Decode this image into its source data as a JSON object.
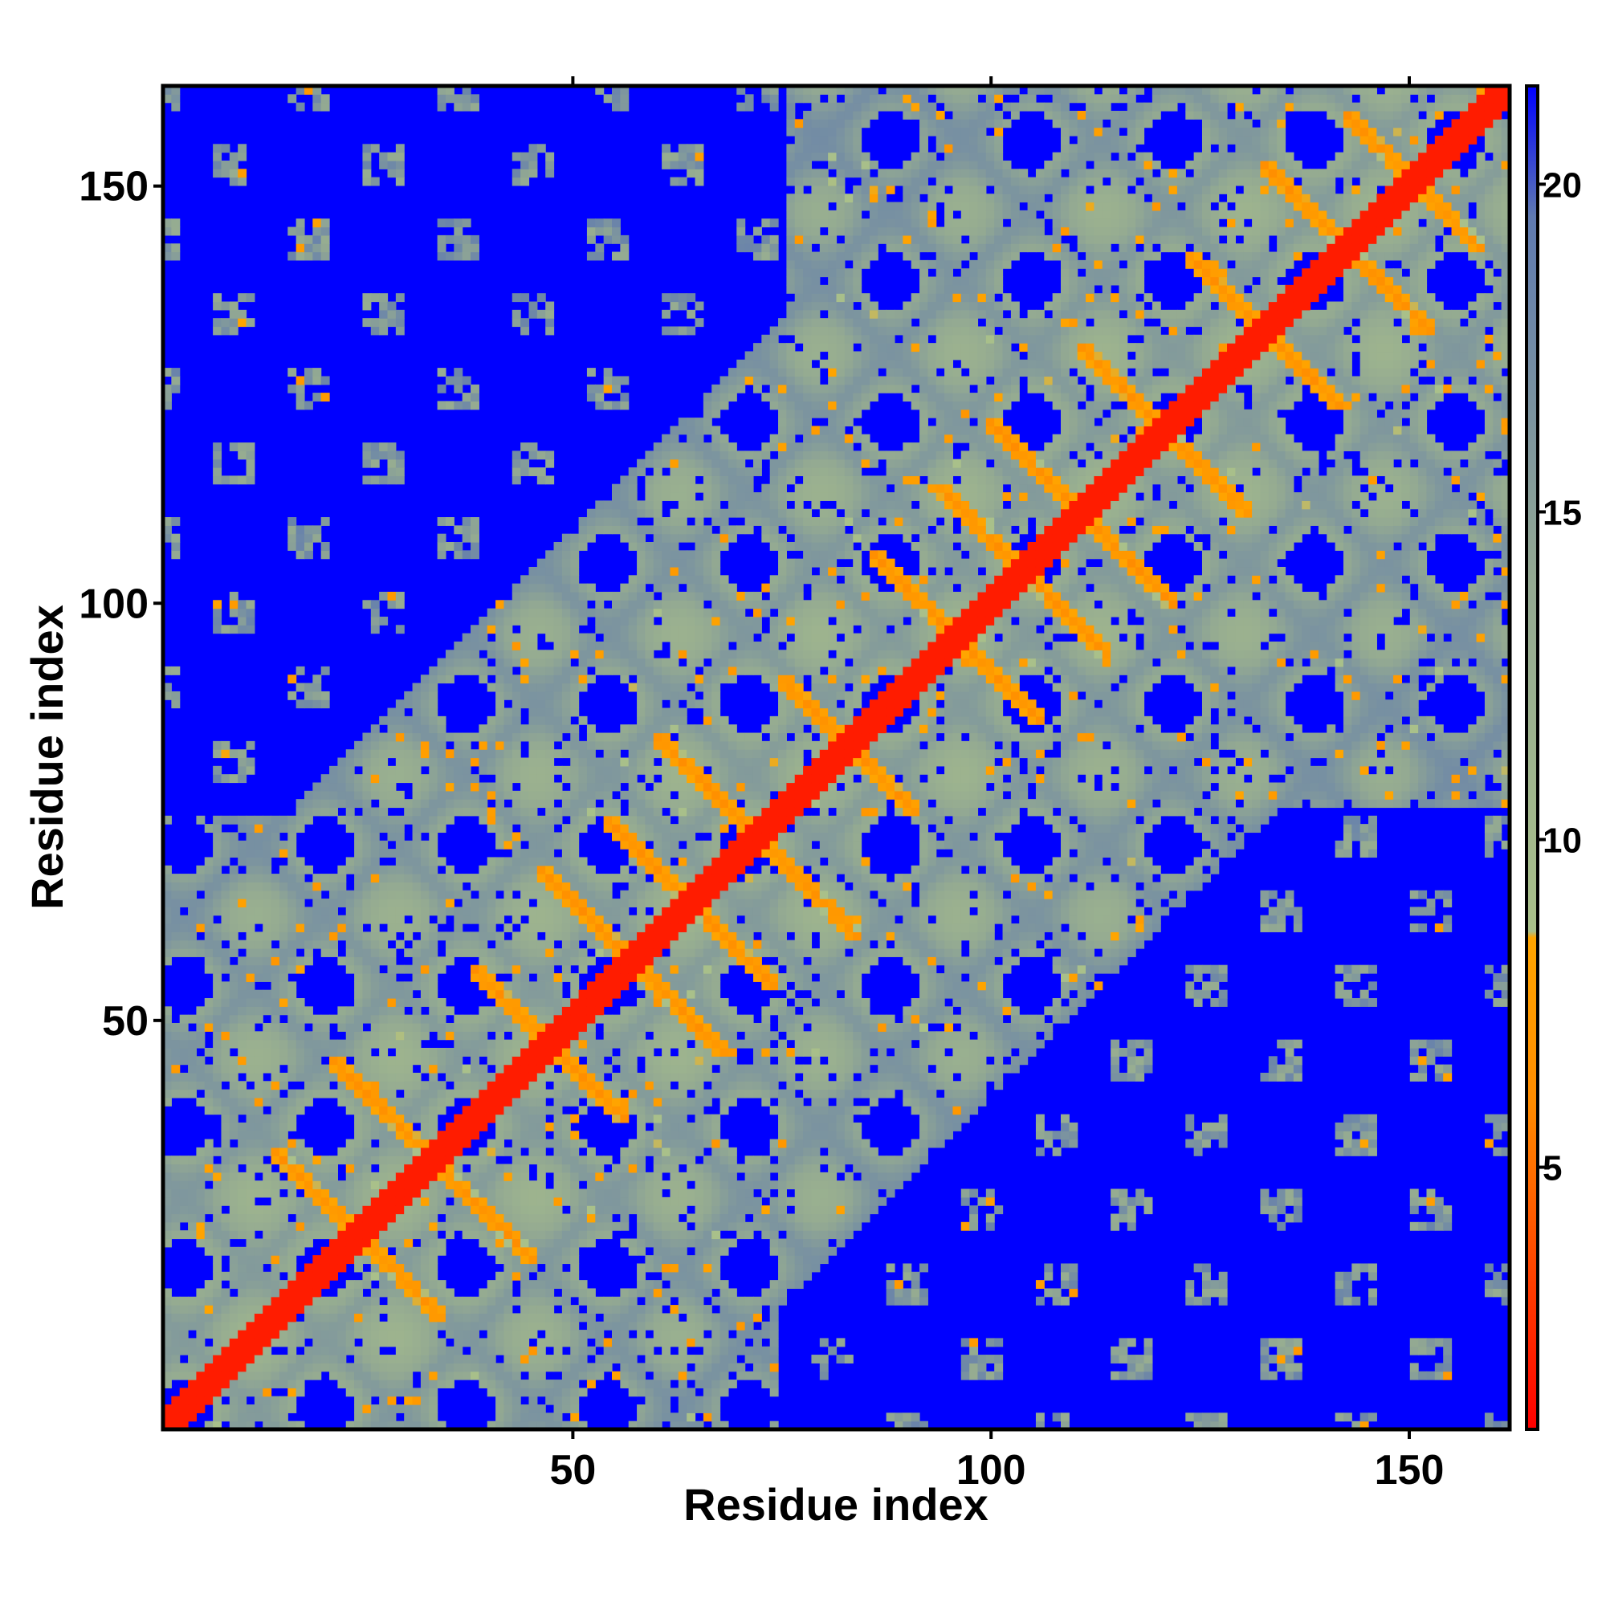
{
  "chart_data": {
    "type": "heatmap",
    "title": "",
    "xlabel": "Residue index",
    "ylabel": "Residue index",
    "n_residues": 162,
    "xlim": [
      1,
      162
    ],
    "ylim": [
      1,
      162
    ],
    "x_ticks": [
      50,
      100,
      150
    ],
    "y_ticks": [
      50,
      100,
      150
    ],
    "colorbar": {
      "ticks": [
        5,
        10,
        15,
        20
      ],
      "range": [
        1,
        21.5
      ],
      "stops": [
        {
          "value": 1,
          "color": "#ff0000"
        },
        {
          "value": 6,
          "color": "#ff8c00"
        },
        {
          "value": 8.5,
          "color": "#ffa500"
        },
        {
          "value": 8.6,
          "color": "#a9c08a"
        },
        {
          "value": 14,
          "color": "#93a992"
        },
        {
          "value": 19.5,
          "color": "#5f7ab0"
        },
        {
          "value": 21.5,
          "color": "#0000ff"
        }
      ]
    },
    "colors": {
      "background": "#0000ff",
      "diagonal": "#ff0000",
      "contact_close": "#ffa500",
      "contact_mid": "#a9c08a"
    },
    "structure": {
      "diagonal_width": 2,
      "hairpin_arms": [
        {
          "center": 24,
          "span": 10
        },
        {
          "center": 33,
          "span": 12
        },
        {
          "center": 47,
          "span": 9
        },
        {
          "center": 57,
          "span": 11
        },
        {
          "center": 64,
          "span": 10
        },
        {
          "center": 72,
          "span": 12
        },
        {
          "center": 83,
          "span": 8
        },
        {
          "center": 96,
          "span": 10
        },
        {
          "center": 104,
          "span": 10
        },
        {
          "center": 111,
          "span": 11
        },
        {
          "center": 121,
          "span": 10
        },
        {
          "center": 133,
          "span": 9
        },
        {
          "center": 143,
          "span": 10
        },
        {
          "center": 151,
          "span": 8
        }
      ]
    }
  }
}
